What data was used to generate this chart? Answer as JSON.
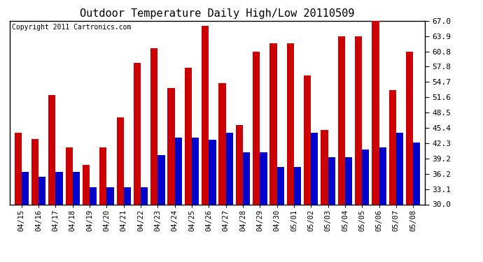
{
  "title": "Outdoor Temperature Daily High/Low 20110509",
  "copyright": "Copyright 2011 Cartronics.com",
  "dates": [
    "04/15",
    "04/16",
    "04/17",
    "04/18",
    "04/19",
    "04/20",
    "04/21",
    "04/22",
    "04/23",
    "04/24",
    "04/25",
    "04/26",
    "04/27",
    "04/28",
    "04/29",
    "04/30",
    "05/01",
    "05/02",
    "05/03",
    "05/04",
    "05/05",
    "05/06",
    "05/07",
    "05/08"
  ],
  "highs": [
    44.5,
    43.2,
    52.0,
    41.5,
    38.0,
    41.5,
    47.5,
    58.5,
    61.5,
    53.5,
    57.5,
    66.0,
    54.5,
    46.0,
    60.8,
    62.5,
    62.5,
    56.0,
    45.0,
    63.9,
    63.9,
    67.0,
    53.0,
    60.8
  ],
  "lows": [
    36.5,
    35.5,
    36.5,
    36.5,
    33.5,
    33.5,
    33.5,
    33.5,
    40.0,
    43.5,
    43.5,
    43.0,
    44.5,
    40.5,
    40.5,
    37.5,
    37.5,
    44.5,
    39.5,
    39.5,
    41.0,
    41.5,
    44.5,
    42.5
  ],
  "high_color": "#cc0000",
  "low_color": "#0000cc",
  "bg_color": "#ffffff",
  "grid_color": "#aaaaaa",
  "ylim_min": 30.0,
  "ylim_max": 67.0,
  "yticks": [
    30.0,
    33.1,
    36.2,
    39.2,
    42.3,
    45.4,
    48.5,
    51.6,
    54.7,
    57.8,
    60.8,
    63.9,
    67.0
  ]
}
